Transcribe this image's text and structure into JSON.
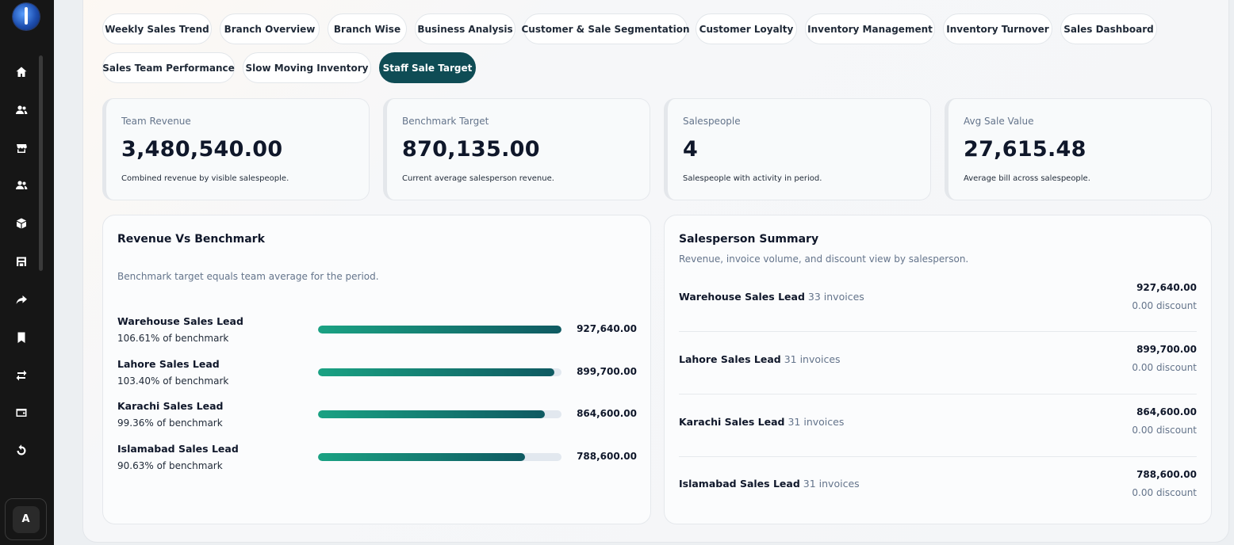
{
  "sidebar": {
    "icons": [
      "home-icon",
      "users-icon",
      "store-icon",
      "customers-icon",
      "box-icon",
      "storefront-icon",
      "share-arrow-icon",
      "bookmark-icon",
      "exchange-icon",
      "wallet-icon",
      "refresh-icon"
    ],
    "avatar_letter": "A"
  },
  "tabs": [
    {
      "label": "Weekly Sales Trend",
      "active": false
    },
    {
      "label": "Branch Overview",
      "active": false
    },
    {
      "label": "Branch Wise",
      "active": false
    },
    {
      "label": "Business Analysis",
      "active": false
    },
    {
      "label": "Customer & Sale Segmentation",
      "active": false
    },
    {
      "label": "Customer Loyalty",
      "active": false
    },
    {
      "label": "Inventory Management",
      "active": false
    },
    {
      "label": "Inventory Turnover",
      "active": false
    },
    {
      "label": "Sales Dashboard",
      "active": false
    },
    {
      "label": "Sales Team Performance",
      "active": false
    },
    {
      "label": "Slow Moving Inventory",
      "active": false
    },
    {
      "label": "Staff Sale Target",
      "active": true
    }
  ],
  "cards": [
    {
      "label": "Team Revenue",
      "value": "3,480,540.00",
      "desc": "Combined revenue by visible salespeople."
    },
    {
      "label": "Benchmark Target",
      "value": "870,135.00",
      "desc": "Current average salesperson revenue."
    },
    {
      "label": "Salespeople",
      "value": "4",
      "desc": "Salespeople with activity in period."
    },
    {
      "label": "Avg Sale Value",
      "value": "27,615.48",
      "desc": "Average bill across salespeople."
    }
  ],
  "revenue_benchmark": {
    "title": "Revenue Vs Benchmark",
    "subtitle": "Benchmark target equals team average for the period.",
    "rows": [
      {
        "name": "Warehouse Sales Lead",
        "pct": "106.61% of benchmark",
        "amount": "927,640.00",
        "fill": 1.0
      },
      {
        "name": "Lahore Sales Lead",
        "pct": "103.40% of benchmark",
        "amount": "899,700.00",
        "fill": 0.97
      },
      {
        "name": "Karachi Sales Lead",
        "pct": "99.36% of benchmark",
        "amount": "864,600.00",
        "fill": 0.932
      },
      {
        "name": "Islamabad Sales Lead",
        "pct": "90.63% of benchmark",
        "amount": "788,600.00",
        "fill": 0.85
      }
    ]
  },
  "salesperson_summary": {
    "title": "Salesperson Summary",
    "subtitle": "Revenue, invoice volume, and discount view by salesperson.",
    "rows": [
      {
        "name": "Warehouse Sales Lead",
        "invoices": "33 invoices",
        "amount": "927,640.00",
        "discount": "0.00 discount"
      },
      {
        "name": "Lahore Sales Lead",
        "invoices": "31 invoices",
        "amount": "899,700.00",
        "discount": "0.00 discount"
      },
      {
        "name": "Karachi Sales Lead",
        "invoices": "31 invoices",
        "amount": "864,600.00",
        "discount": "0.00 discount"
      },
      {
        "name": "Islamabad Sales Lead",
        "invoices": "31 invoices",
        "amount": "788,600.00",
        "discount": "0.00 discount"
      }
    ]
  }
}
